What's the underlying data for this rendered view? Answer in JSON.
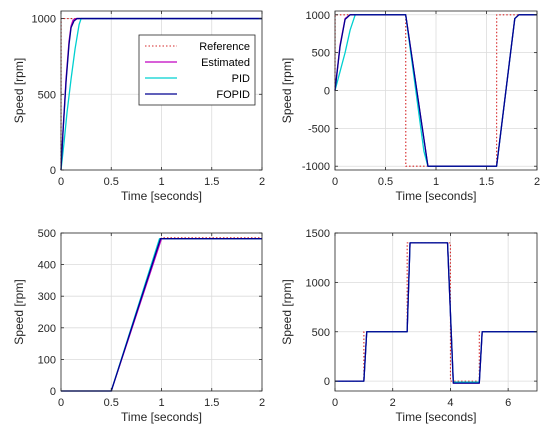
{
  "chart_data": [
    {
      "type": "line",
      "xlabel": "Time [seconds]",
      "ylabel": "Speed [rpm]",
      "xlim": [
        0,
        2
      ],
      "ylim": [
        0,
        1050
      ],
      "xticks": [
        0,
        0.5,
        1,
        1.5,
        2
      ],
      "xticklabels": [
        "0",
        "0.5",
        "1",
        "1.5",
        "2"
      ],
      "yticks": [
        0,
        500,
        1000
      ],
      "yticklabels": [
        "0",
        "500",
        "1000"
      ],
      "grid": true,
      "legend": {
        "placement": "right",
        "entries": [
          "Reference",
          "Estimated",
          "PID",
          "FOPID"
        ]
      },
      "series": [
        {
          "name": "Reference",
          "color": "#d62728",
          "style": "dotted",
          "x": [
            0,
            0.001,
            2
          ],
          "y": [
            0,
            1000,
            1000
          ]
        },
        {
          "name": "Estimated",
          "color": "#c000c0",
          "style": "solid",
          "x": [
            0,
            0.02,
            0.05,
            0.08,
            0.1,
            0.12,
            0.15,
            2
          ],
          "y": [
            0,
            260,
            600,
            850,
            950,
            990,
            1000,
            1000
          ]
        },
        {
          "name": "PID",
          "color": "#00d0d0",
          "style": "solid",
          "x": [
            0,
            0.03,
            0.06,
            0.1,
            0.14,
            0.18,
            0.2,
            2
          ],
          "y": [
            0,
            180,
            380,
            600,
            800,
            960,
            1000,
            1000
          ]
        },
        {
          "name": "FOPID",
          "color": "#000090",
          "style": "solid",
          "x": [
            0,
            0.02,
            0.05,
            0.08,
            0.1,
            0.13,
            0.16,
            2
          ],
          "y": [
            0,
            250,
            580,
            830,
            940,
            985,
            1000,
            1000
          ]
        }
      ]
    },
    {
      "type": "line",
      "xlabel": "Time [seconds]",
      "ylabel": "Speed [rpm]",
      "xlim": [
        0,
        2
      ],
      "ylim": [
        -1050,
        1050
      ],
      "xticks": [
        0,
        0.5,
        1,
        1.5,
        2
      ],
      "xticklabels": [
        "0",
        "0.5",
        "1",
        "1.5",
        "2"
      ],
      "yticks": [
        -1000,
        -500,
        0,
        500,
        1000
      ],
      "yticklabels": [
        "-1000",
        "-500",
        "0",
        "500",
        "1000"
      ],
      "grid": true,
      "series": [
        {
          "name": "Reference",
          "color": "#d62728",
          "style": "dotted",
          "x": [
            0,
            0.001,
            0.7,
            0.701,
            1.6,
            1.601,
            2
          ],
          "y": [
            0,
            1000,
            1000,
            -1000,
            -1000,
            1000,
            1000
          ]
        },
        {
          "name": "Estimated",
          "color": "#c000c0",
          "style": "solid",
          "x": [
            0,
            0.05,
            0.1,
            0.15,
            0.7,
            0.92,
            1.6,
            1.78,
            1.82,
            2
          ],
          "y": [
            0,
            600,
            950,
            1000,
            1000,
            -1000,
            -1000,
            950,
            1000,
            1000
          ]
        },
        {
          "name": "PID",
          "color": "#00d0d0",
          "style": "solid",
          "x": [
            0,
            0.05,
            0.1,
            0.15,
            0.2,
            0.7,
            0.88,
            0.92,
            1.6,
            1.78,
            1.82,
            2
          ],
          "y": [
            0,
            250,
            500,
            800,
            1000,
            1000,
            -800,
            -1000,
            -1000,
            950,
            1000,
            1000
          ]
        },
        {
          "name": "FOPID",
          "color": "#000090",
          "style": "solid",
          "x": [
            0,
            0.05,
            0.1,
            0.15,
            0.7,
            0.92,
            1.6,
            1.78,
            1.82,
            2
          ],
          "y": [
            0,
            580,
            940,
            1000,
            1000,
            -1000,
            -1000,
            950,
            1000,
            1000
          ]
        }
      ]
    },
    {
      "type": "line",
      "xlabel": "Time [seconds]",
      "ylabel": "Speed [rpm]",
      "xlim": [
        0,
        2
      ],
      "ylim": [
        0,
        500
      ],
      "xticks": [
        0,
        0.5,
        1,
        1.5,
        2
      ],
      "xticklabels": [
        "0",
        "0.5",
        "1",
        "1.5",
        "2"
      ],
      "yticks": [
        0,
        100,
        200,
        300,
        400,
        500
      ],
      "yticklabels": [
        "0",
        "100",
        "200",
        "300",
        "400",
        "500"
      ],
      "grid": true,
      "series": [
        {
          "name": "Reference",
          "color": "#d62728",
          "style": "dotted",
          "x": [
            0,
            0.5,
            1,
            2
          ],
          "y": [
            0,
            0,
            485,
            485
          ]
        },
        {
          "name": "Estimated",
          "color": "#c000c0",
          "style": "solid",
          "x": [
            0,
            0.5,
            1,
            2
          ],
          "y": [
            0,
            0,
            482,
            482
          ]
        },
        {
          "name": "PID",
          "color": "#00d0d0",
          "style": "solid",
          "x": [
            0,
            0.5,
            0.98,
            2
          ],
          "y": [
            0,
            0,
            482,
            482
          ]
        },
        {
          "name": "FOPID",
          "color": "#000090",
          "style": "solid",
          "x": [
            0,
            0.5,
            0.99,
            2
          ],
          "y": [
            0,
            0,
            482,
            482
          ]
        }
      ]
    },
    {
      "type": "line",
      "xlabel": "Time [seconds]",
      "ylabel": "Speed [rpm]",
      "xlim": [
        0,
        7
      ],
      "ylim": [
        -100,
        1500
      ],
      "xticks": [
        0,
        2,
        4,
        6
      ],
      "xticklabels": [
        "0",
        "2",
        "4",
        "6"
      ],
      "yticks": [
        0,
        500,
        1000,
        1500
      ],
      "yticklabels": [
        "0",
        "500",
        "1000",
        "1500"
      ],
      "grid": true,
      "series": [
        {
          "name": "Reference",
          "color": "#d62728",
          "style": "dotted",
          "x": [
            0,
            1,
            1.001,
            2.5,
            2.501,
            4,
            4.001,
            5,
            5.001,
            7
          ],
          "y": [
            0,
            0,
            500,
            500,
            1400,
            1400,
            0,
            0,
            500,
            500
          ]
        },
        {
          "name": "Estimated",
          "color": "#c000c0",
          "style": "solid",
          "x": [
            0,
            1,
            1.1,
            2.5,
            2.6,
            3.9,
            4.1,
            5,
            5.1,
            7
          ],
          "y": [
            0,
            0,
            500,
            500,
            1400,
            1400,
            -20,
            -20,
            500,
            500
          ]
        },
        {
          "name": "PID",
          "color": "#00d0d0",
          "style": "solid",
          "x": [
            0,
            1,
            1.1,
            2.5,
            2.6,
            3.9,
            4.1,
            5,
            5.1,
            7
          ],
          "y": [
            0,
            0,
            500,
            500,
            1400,
            1400,
            -10,
            -10,
            500,
            500
          ]
        },
        {
          "name": "FOPID",
          "color": "#000090",
          "style": "solid",
          "x": [
            0,
            1,
            1.1,
            2.5,
            2.6,
            3.9,
            4.1,
            5,
            5.1,
            7
          ],
          "y": [
            0,
            0,
            500,
            500,
            1400,
            1400,
            -20,
            -20,
            500,
            500
          ]
        }
      ]
    }
  ]
}
